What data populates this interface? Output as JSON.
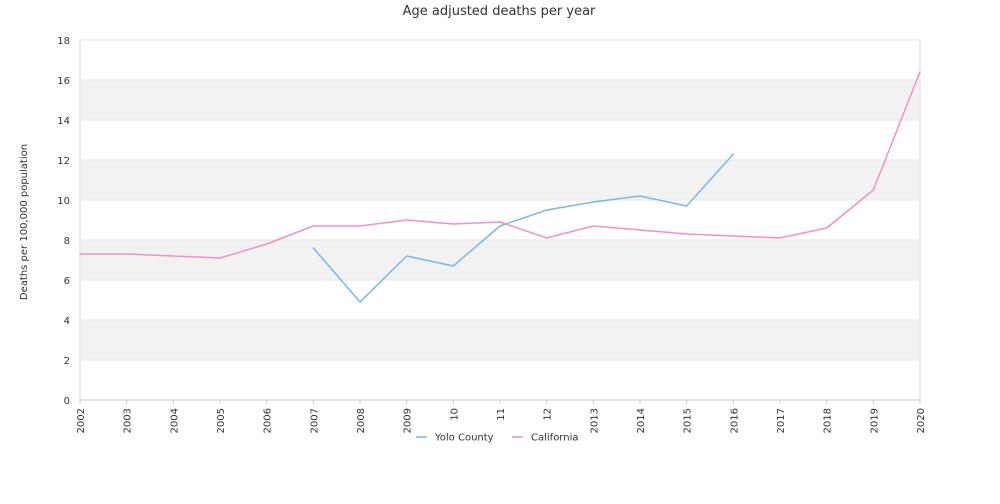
{
  "chart_data": {
    "type": "line",
    "title": "Age adjusted deaths per year",
    "xlabel": "",
    "ylabel": "Deaths per 100,000 population",
    "x": [
      "2002",
      "2003",
      "2004",
      "2005",
      "2006",
      "2007",
      "2008",
      "2009",
      "2010",
      "2011",
      "2012",
      "2013",
      "2014",
      "2015",
      "2016",
      "2017",
      "2018",
      "2019",
      "2020"
    ],
    "x_tick_labels": [
      "2002",
      "2003",
      "2004",
      "2005",
      "2006",
      "2007",
      "2008",
      "2009",
      "10",
      "11",
      "12",
      "2013",
      "2014",
      "2015",
      "2016",
      "2017",
      "2018",
      "2019",
      "2020"
    ],
    "ylim": [
      0,
      18
    ],
    "y_ticks": [
      0,
      2,
      4,
      6,
      8,
      10,
      12,
      14,
      16,
      18
    ],
    "grid": "alternating horizontal bands",
    "legend_position": "bottom-center",
    "series": [
      {
        "name": "Yolo County",
        "color": "#7cb5ec",
        "values": [
          null,
          null,
          null,
          null,
          null,
          7.6,
          4.9,
          7.2,
          6.7,
          8.7,
          9.5,
          9.9,
          10.2,
          9.7,
          12.3,
          null,
          null,
          null,
          null
        ]
      },
      {
        "name": "California",
        "color": "#f490c4",
        "values": [
          7.3,
          7.3,
          7.2,
          7.1,
          7.8,
          8.7,
          8.7,
          9.0,
          8.8,
          8.9,
          8.1,
          8.7,
          8.5,
          8.3,
          8.2,
          8.1,
          8.6,
          10.5,
          16.4
        ]
      }
    ]
  }
}
